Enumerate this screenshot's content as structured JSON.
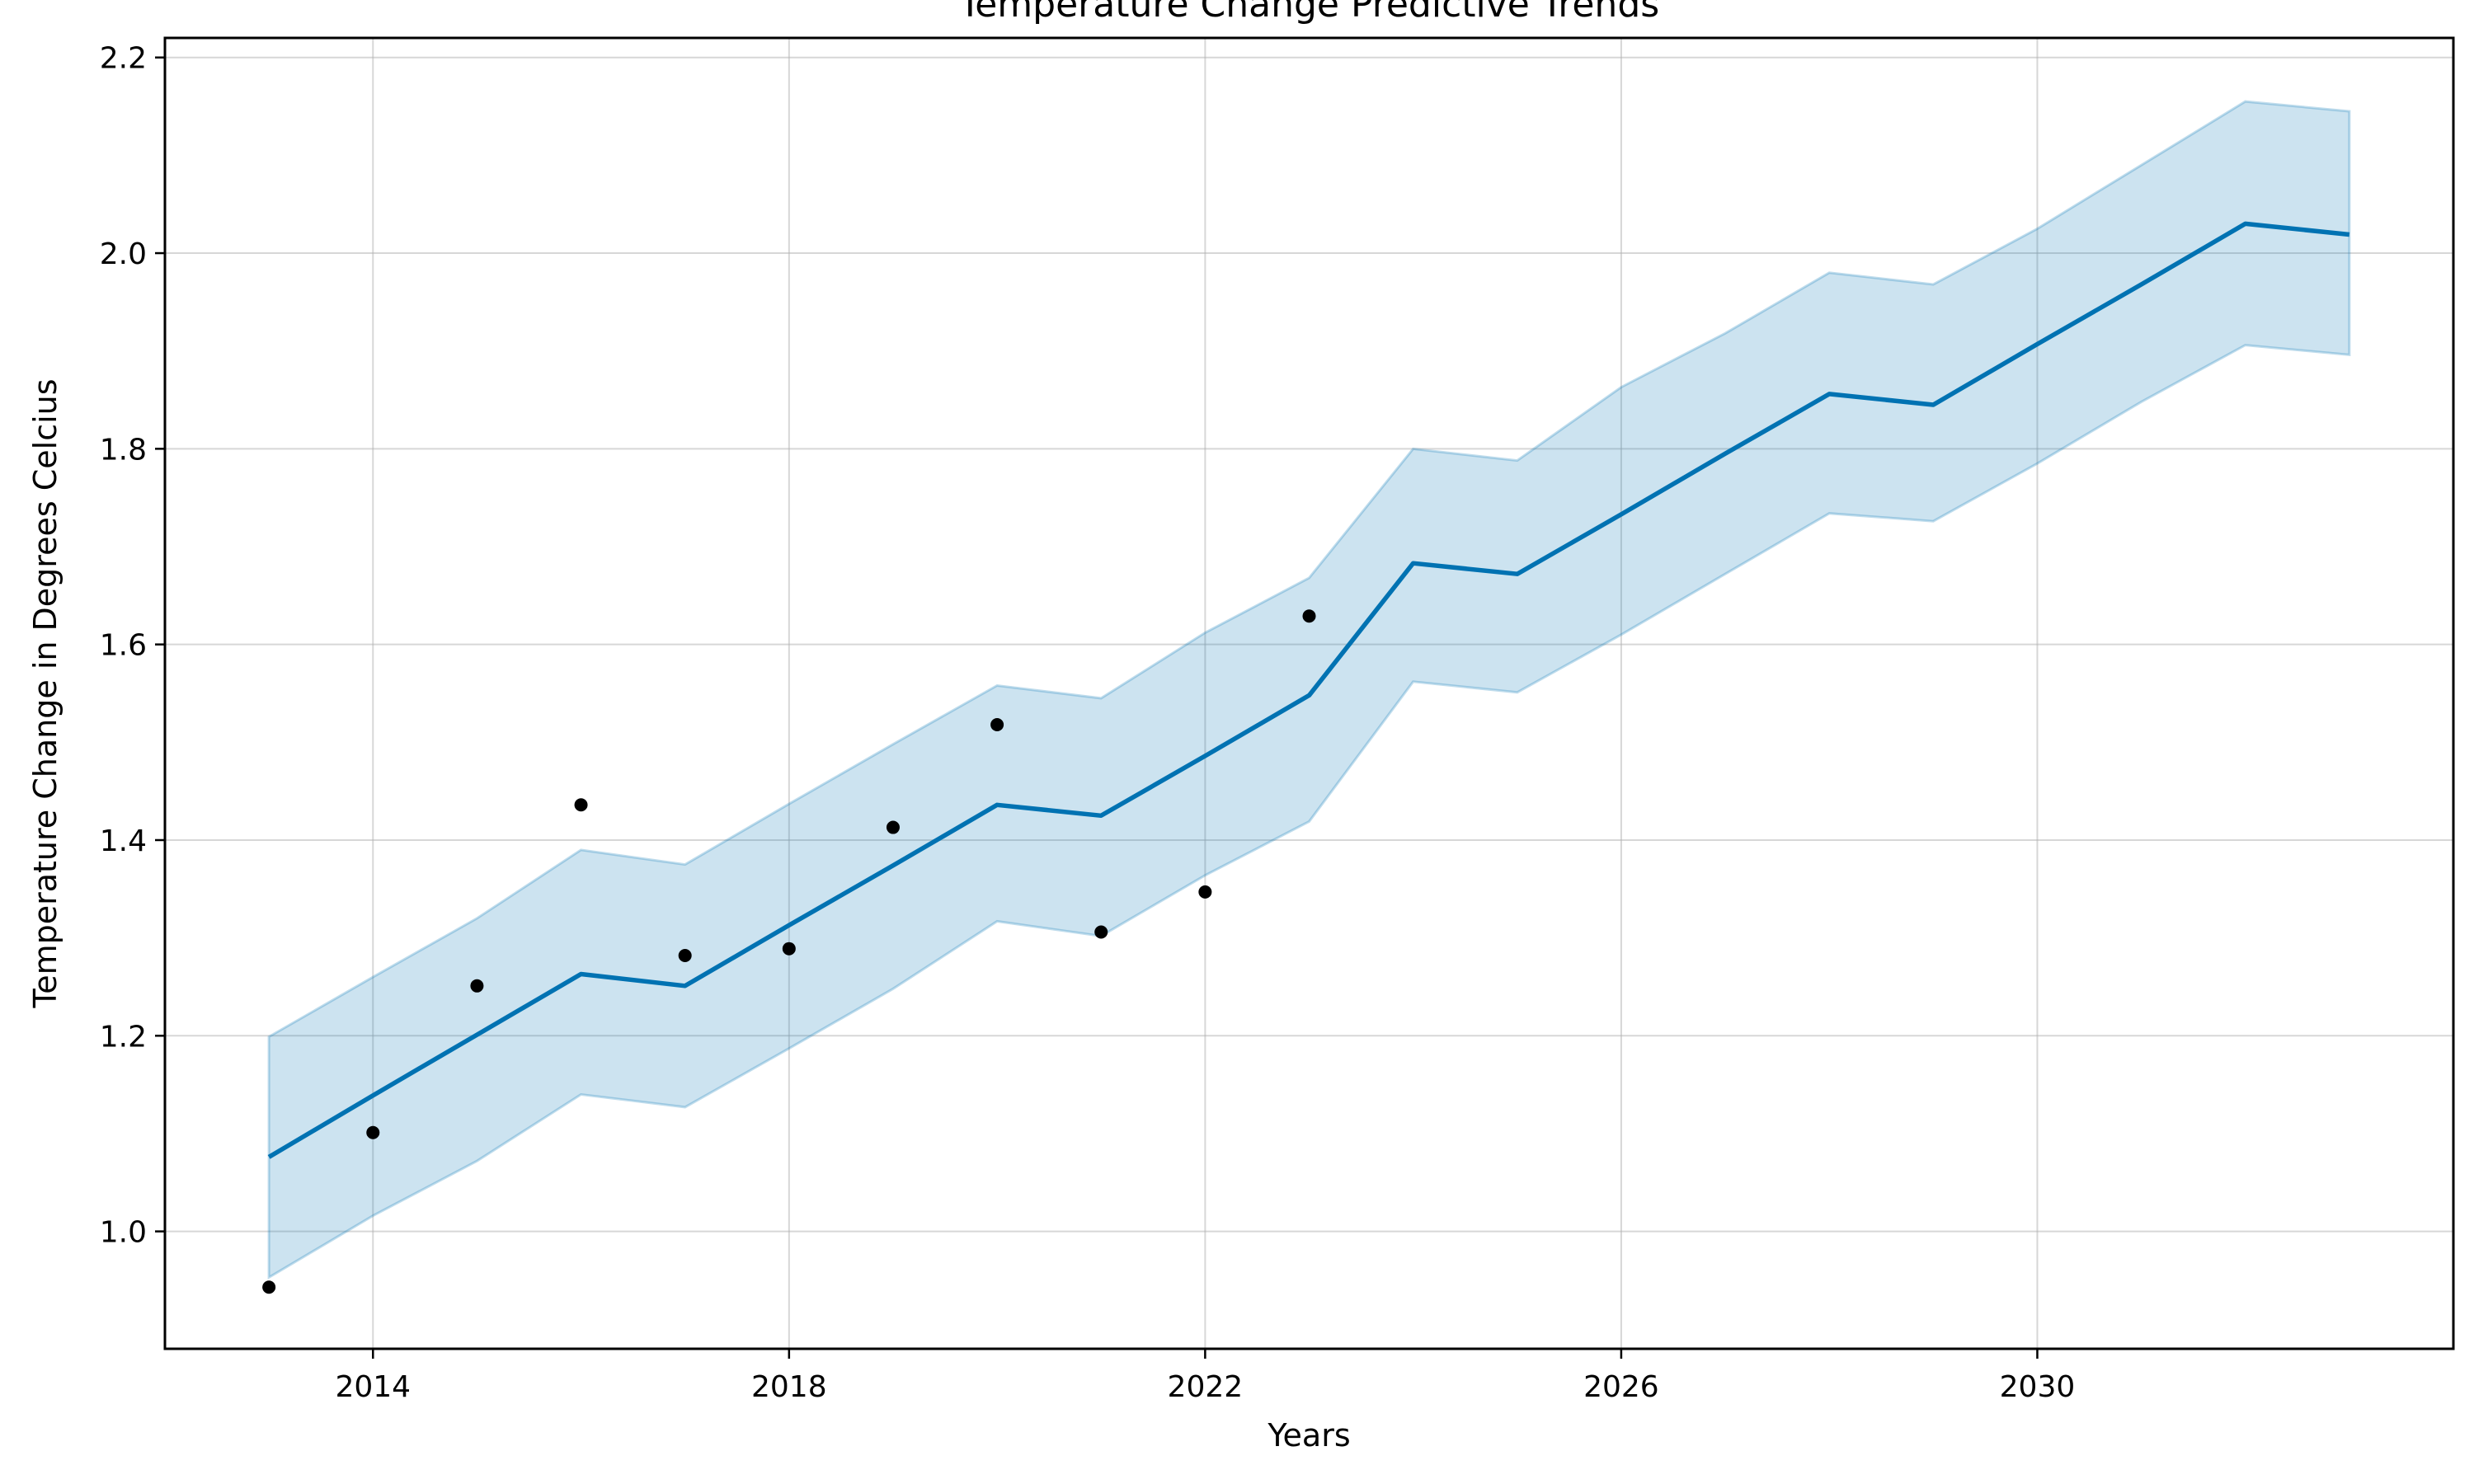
{
  "chart_data": {
    "type": "line",
    "title": "Temperature Change Predictive Trends",
    "xlabel": "Years",
    "ylabel": "Temperature Change in Degrees Celcius",
    "xlim": [
      2012,
      2034
    ],
    "ylim": [
      0.88,
      2.22
    ],
    "x_ticks": [
      "2014",
      "2018",
      "2022",
      "2026",
      "2030"
    ],
    "y_ticks": [
      "1.0",
      "1.2",
      "1.4",
      "1.6",
      "1.8",
      "2.0",
      "2.2"
    ],
    "grid": true,
    "colors": {
      "forecast_line": "#0072b2",
      "uncertainty_band": "#0072b2",
      "observed_points": "#000000"
    },
    "observed": {
      "x": [
        2013,
        2014,
        2015,
        2016,
        2017,
        2018,
        2019,
        2020,
        2021,
        2022,
        2023
      ],
      "y": [
        0.943,
        1.101,
        1.251,
        1.436,
        1.282,
        1.289,
        1.413,
        1.518,
        1.306,
        1.347,
        1.629
      ]
    },
    "forecast": {
      "x": [
        2013,
        2014,
        2015,
        2016,
        2017,
        2018,
        2019,
        2020,
        2021,
        2022,
        2023,
        2024,
        2025,
        2026,
        2027,
        2028,
        2029,
        2030,
        2031,
        2032,
        2033
      ],
      "y": [
        1.076,
        1.139,
        1.201,
        1.263,
        1.251,
        1.313,
        1.374,
        1.436,
        1.425,
        1.486,
        1.548,
        1.683,
        1.672,
        1.733,
        1.795,
        1.856,
        1.845,
        1.907,
        1.968,
        2.03,
        2.019
      ],
      "lower": [
        0.953,
        1.016,
        1.072,
        1.14,
        1.127,
        1.187,
        1.248,
        1.317,
        1.302,
        1.364,
        1.419,
        1.562,
        1.551,
        1.61,
        1.672,
        1.734,
        1.726,
        1.785,
        1.848,
        1.906,
        1.896
      ],
      "upper": [
        1.199,
        1.26,
        1.32,
        1.39,
        1.375,
        1.437,
        1.498,
        1.558,
        1.545,
        1.612,
        1.668,
        1.8,
        1.788,
        1.863,
        1.918,
        1.98,
        1.968,
        2.025,
        2.09,
        2.155,
        2.145
      ]
    }
  }
}
